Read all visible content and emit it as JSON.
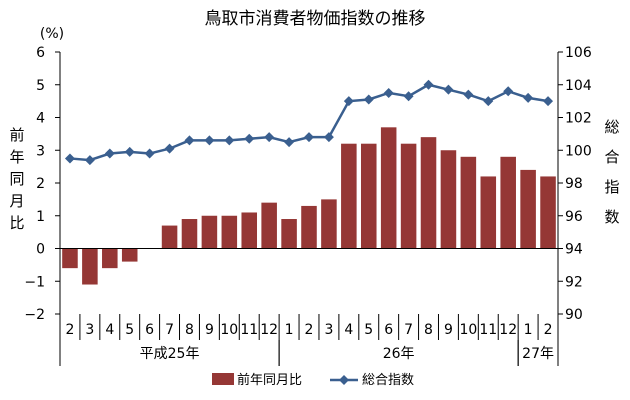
{
  "chart_data": {
    "type": "bar",
    "title": "鳥取市消費者物価指数の推移",
    "left_unit": "(%)",
    "left_axis_label": "前年同月比",
    "right_axis_label": "総合指数",
    "left_ylim": [
      -2,
      6
    ],
    "left_ticks": [
      "6",
      "5",
      "4",
      "3",
      "2",
      "1",
      "0",
      "−1",
      "−2"
    ],
    "right_ylim": [
      90,
      106
    ],
    "right_ticks": [
      "106",
      "104",
      "102",
      "100",
      "98",
      "96",
      "94",
      "92",
      "90"
    ],
    "grid": false,
    "legend_position": "bottom",
    "categories": [
      "2",
      "3",
      "4",
      "5",
      "6",
      "7",
      "8",
      "9",
      "10",
      "11",
      "12",
      "1",
      "2",
      "3",
      "4",
      "5",
      "6",
      "7",
      "8",
      "9",
      "10",
      "11",
      "12",
      "1",
      "2"
    ],
    "year_groups": [
      {
        "label": "平成25年",
        "start": 0,
        "end": 10
      },
      {
        "label": "26年",
        "start": 11,
        "end": 22
      },
      {
        "label": "27年",
        "start": 23,
        "end": 24
      }
    ],
    "series": [
      {
        "name": "前年同月比",
        "type": "bar",
        "axis": "left",
        "color": "#953735",
        "values": [
          -0.6,
          -1.1,
          -0.6,
          -0.4,
          0.0,
          0.7,
          0.9,
          1.0,
          1.0,
          1.1,
          1.4,
          0.9,
          1.3,
          1.5,
          3.2,
          3.2,
          3.7,
          3.2,
          3.4,
          3.0,
          2.8,
          2.2,
          2.8,
          2.4,
          2.2
        ]
      },
      {
        "name": "総合指数",
        "type": "line",
        "axis": "right",
        "color": "#3a5f8f",
        "values": [
          99.5,
          99.4,
          99.8,
          99.9,
          99.8,
          100.1,
          100.6,
          100.6,
          100.6,
          100.7,
          100.8,
          100.5,
          100.8,
          100.8,
          103.0,
          103.1,
          103.5,
          103.3,
          104.0,
          103.7,
          103.4,
          103.0,
          103.6,
          103.2,
          103.0
        ]
      }
    ]
  }
}
